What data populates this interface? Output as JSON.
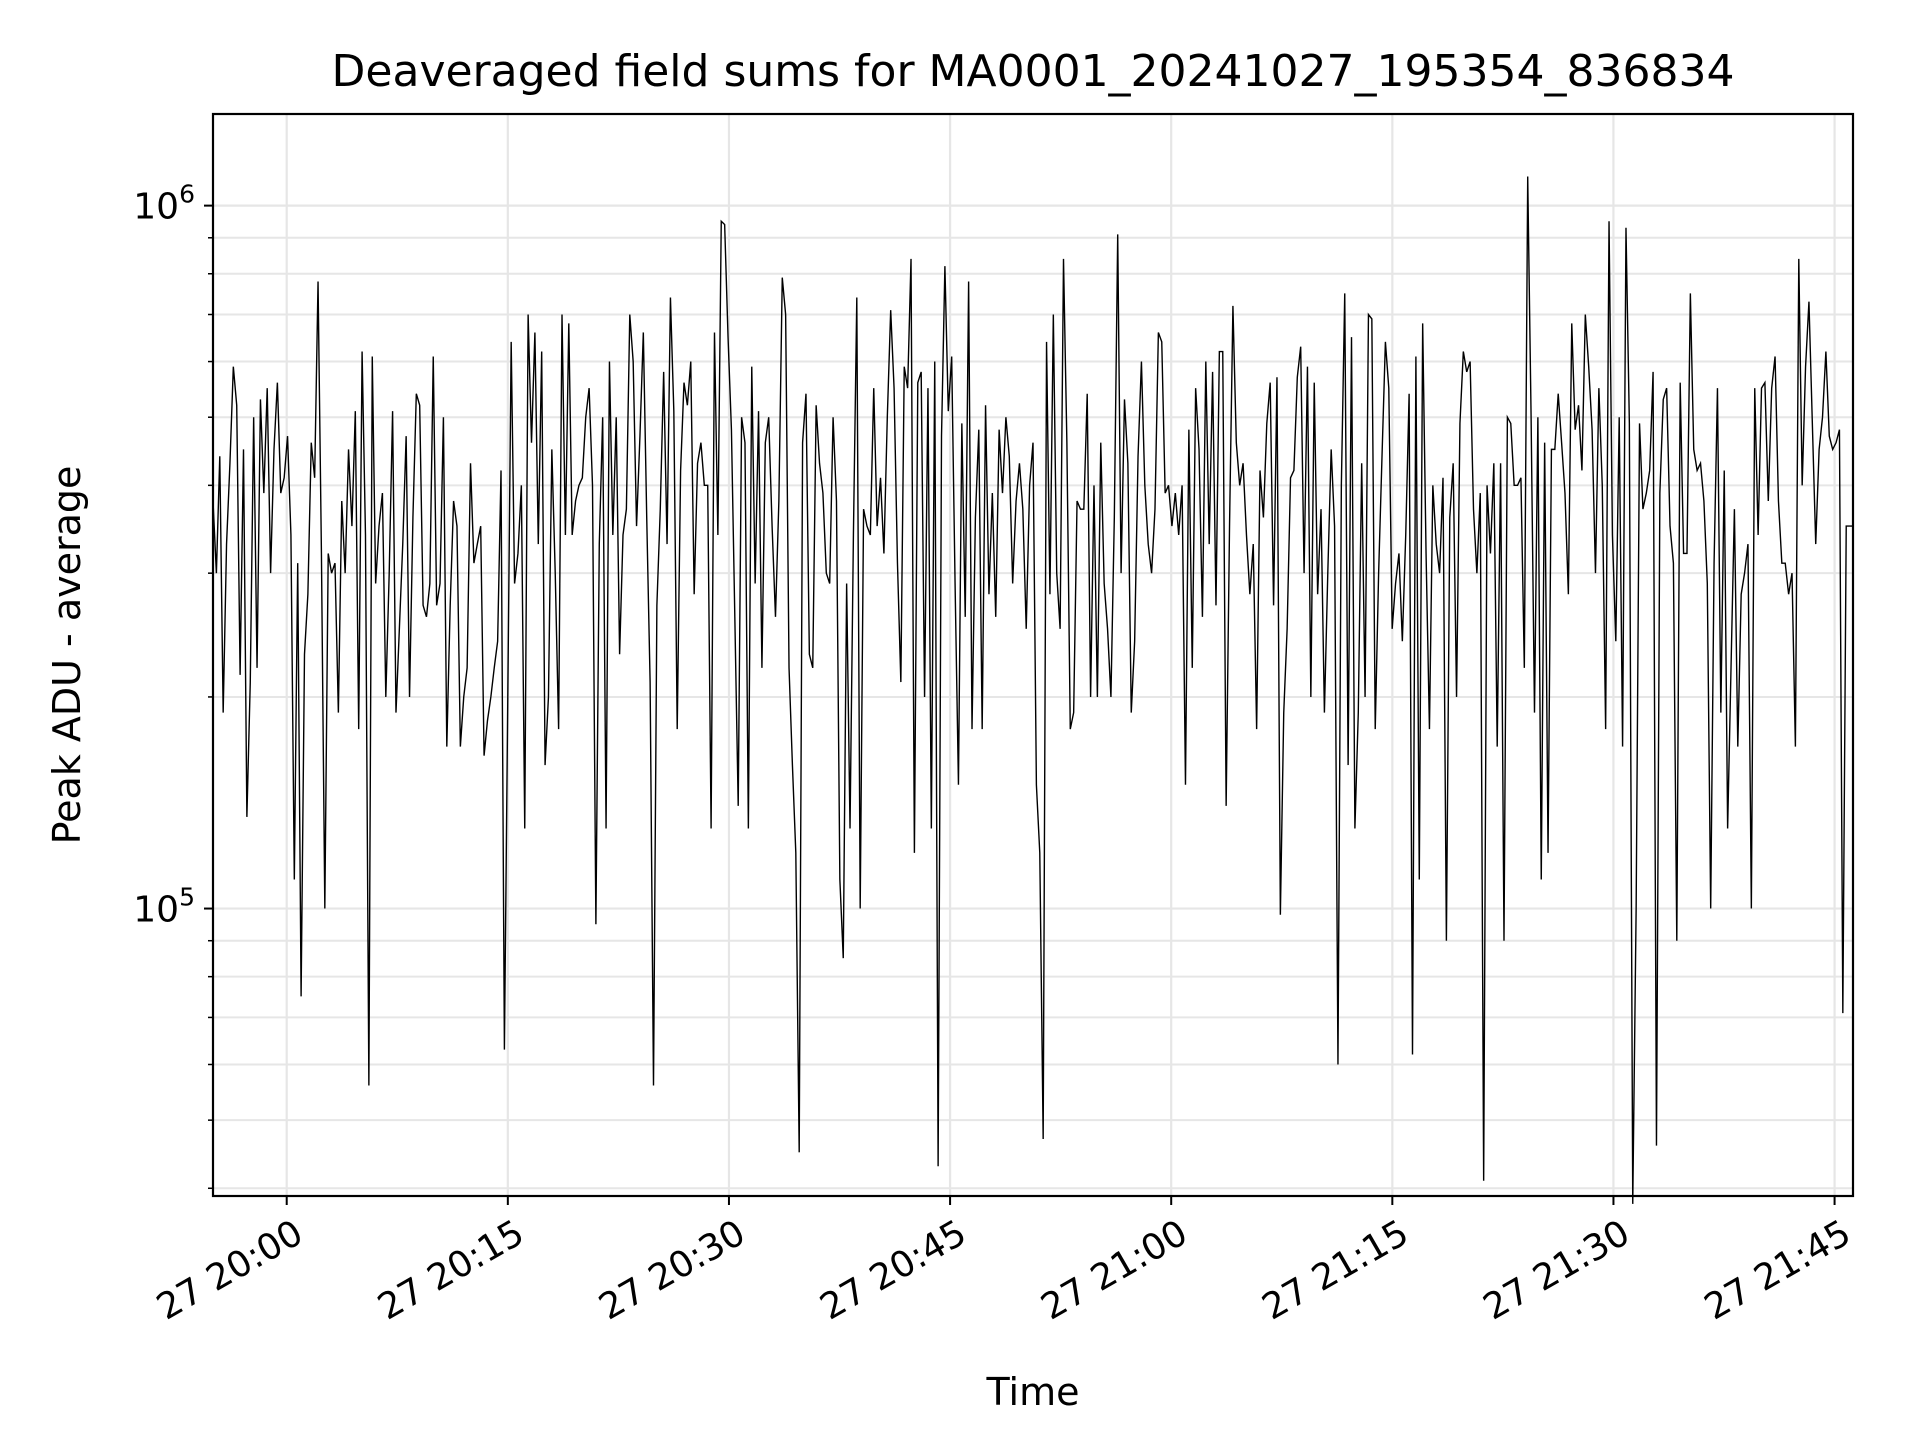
{
  "chart_data": {
    "type": "line",
    "title": "Deaveraged field sums for MA0001_20241027_195354_836834",
    "xlabel": "Time",
    "ylabel": "Peak ADU - average",
    "yscale": "log",
    "xlim": [
      "2024-10-27 19:55:00",
      "2024-10-27 21:46:15"
    ],
    "ylim": [
      39000,
      1350000
    ],
    "grid": true,
    "x_ticks": [
      {
        "value": "2024-10-27 20:00",
        "label": "27 20:00"
      },
      {
        "value": "2024-10-27 20:15",
        "label": "27 20:15"
      },
      {
        "value": "2024-10-27 20:30",
        "label": "27 20:30"
      },
      {
        "value": "2024-10-27 20:45",
        "label": "27 20:45"
      },
      {
        "value": "2024-10-27 21:00",
        "label": "27 21:00"
      },
      {
        "value": "2024-10-27 21:15",
        "label": "27 21:15"
      },
      {
        "value": "2024-10-27 21:30",
        "label": "27 21:30"
      },
      {
        "value": "2024-10-27 21:45",
        "label": "27 21:45"
      }
    ],
    "y_ticks": [
      {
        "value": 100000,
        "base": "10",
        "exp": "5"
      },
      {
        "value": 1000000,
        "base": "10",
        "exp": "6"
      }
    ],
    "line_color": "#000000",
    "series": [
      {
        "start": "2024-10-27 19:55:00",
        "end": "2024-10-27 21:46:15",
        "values": [
          380000,
          300000,
          440000,
          190000,
          330000,
          430000,
          590000,
          520000,
          215000,
          450000,
          135000,
          210000,
          500000,
          220000,
          530000,
          390000,
          550000,
          300000,
          450000,
          560000,
          390000,
          410000,
          470000,
          340000,
          110000,
          310000,
          75000,
          230000,
          280000,
          460000,
          410000,
          780000,
          320000,
          100000,
          320000,
          300000,
          310000,
          190000,
          380000,
          300000,
          450000,
          350000,
          510000,
          180000,
          620000,
          340000,
          56000,
          610000,
          290000,
          350000,
          390000,
          200000,
          300000,
          510000,
          190000,
          250000,
          330000,
          470000,
          200000,
          360000,
          540000,
          520000,
          270000,
          260000,
          290000,
          610000,
          270000,
          290000,
          500000,
          170000,
          270000,
          380000,
          350000,
          170000,
          200000,
          220000,
          430000,
          310000,
          330000,
          350000,
          165000,
          185000,
          200000,
          220000,
          240000,
          420000,
          63000,
          200000,
          640000,
          290000,
          320000,
          400000,
          130000,
          700000,
          460000,
          660000,
          330000,
          620000,
          160000,
          200000,
          450000,
          300000,
          180000,
          700000,
          340000,
          680000,
          340000,
          380000,
          400000,
          410000,
          500000,
          550000,
          400000,
          95000,
          330000,
          500000,
          130000,
          600000,
          340000,
          500000,
          230000,
          340000,
          370000,
          700000,
          600000,
          350000,
          470000,
          660000,
          360000,
          210000,
          56000,
          270000,
          370000,
          580000,
          330000,
          740000,
          510000,
          180000,
          420000,
          560000,
          520000,
          600000,
          280000,
          430000,
          460000,
          400000,
          400000,
          130000,
          660000,
          340000,
          950000,
          940000,
          650000,
          480000,
          260000,
          140000,
          500000,
          460000,
          130000,
          590000,
          290000,
          510000,
          220000,
          460000,
          500000,
          350000,
          260000,
          380000,
          790000,
          700000,
          220000,
          160000,
          120000,
          45000,
          460000,
          540000,
          230000,
          220000,
          520000,
          430000,
          390000,
          300000,
          290000,
          500000,
          380000,
          110000,
          85000,
          290000,
          130000,
          340000,
          740000,
          100000,
          370000,
          350000,
          340000,
          550000,
          350000,
          410000,
          320000,
          500000,
          710000,
          550000,
          310000,
          210000,
          590000,
          550000,
          840000,
          120000,
          560000,
          580000,
          200000,
          550000,
          130000,
          600000,
          43000,
          470000,
          820000,
          510000,
          610000,
          290000,
          150000,
          490000,
          260000,
          780000,
          180000,
          360000,
          480000,
          180000,
          520000,
          280000,
          390000,
          260000,
          480000,
          390000,
          500000,
          440000,
          290000,
          380000,
          430000,
          370000,
          250000,
          400000,
          460000,
          150000,
          120000,
          47000,
          640000,
          280000,
          700000,
          300000,
          250000,
          840000,
          460000,
          180000,
          190000,
          380000,
          370000,
          370000,
          540000,
          200000,
          400000,
          200000,
          460000,
          290000,
          250000,
          200000,
          360000,
          910000,
          300000,
          530000,
          430000,
          190000,
          240000,
          440000,
          600000,
          400000,
          330000,
          300000,
          370000,
          660000,
          640000,
          390000,
          400000,
          350000,
          390000,
          340000,
          400000,
          150000,
          480000,
          220000,
          550000,
          450000,
          260000,
          600000,
          330000,
          580000,
          270000,
          620000,
          620000,
          140000,
          350000,
          720000,
          460000,
          400000,
          430000,
          340000,
          280000,
          330000,
          180000,
          420000,
          360000,
          490000,
          560000,
          270000,
          570000,
          98000,
          190000,
          250000,
          410000,
          420000,
          570000,
          630000,
          300000,
          590000,
          200000,
          560000,
          280000,
          370000,
          190000,
          300000,
          450000,
          350000,
          60000,
          400000,
          750000,
          160000,
          650000,
          130000,
          190000,
          430000,
          200000,
          700000,
          690000,
          180000,
          300000,
          440000,
          640000,
          550000,
          250000,
          290000,
          320000,
          240000,
          340000,
          540000,
          62000,
          610000,
          110000,
          680000,
          320000,
          180000,
          400000,
          330000,
          300000,
          410000,
          90000,
          360000,
          430000,
          200000,
          490000,
          620000,
          580000,
          600000,
          370000,
          300000,
          390000,
          41000,
          400000,
          320000,
          430000,
          170000,
          430000,
          90000,
          500000,
          490000,
          400000,
          400000,
          410000,
          220000,
          1100000,
          500000,
          190000,
          500000,
          110000,
          460000,
          120000,
          450000,
          450000,
          540000,
          460000,
          390000,
          280000,
          680000,
          480000,
          520000,
          420000,
          700000,
          590000,
          480000,
          300000,
          550000,
          400000,
          180000,
          950000,
          340000,
          240000,
          500000,
          170000,
          930000,
          490000,
          38000,
          100000,
          490000,
          370000,
          390000,
          420000,
          580000,
          46000,
          390000,
          530000,
          550000,
          350000,
          310000,
          90000,
          560000,
          320000,
          320000,
          750000,
          450000,
          420000,
          430000,
          380000,
          290000,
          100000,
          310000,
          550000,
          190000,
          420000,
          130000,
          220000,
          370000,
          170000,
          280000,
          300000,
          330000,
          100000,
          550000,
          340000,
          550000,
          560000,
          380000,
          550000,
          610000,
          380000,
          310000,
          310000,
          280000,
          300000,
          170000,
          840000,
          400000,
          590000,
          730000,
          490000,
          330000,
          450000,
          500000,
          620000,
          470000,
          450000,
          460000,
          480000,
          71000,
          350000,
          350000,
          350000
        ]
      }
    ]
  }
}
